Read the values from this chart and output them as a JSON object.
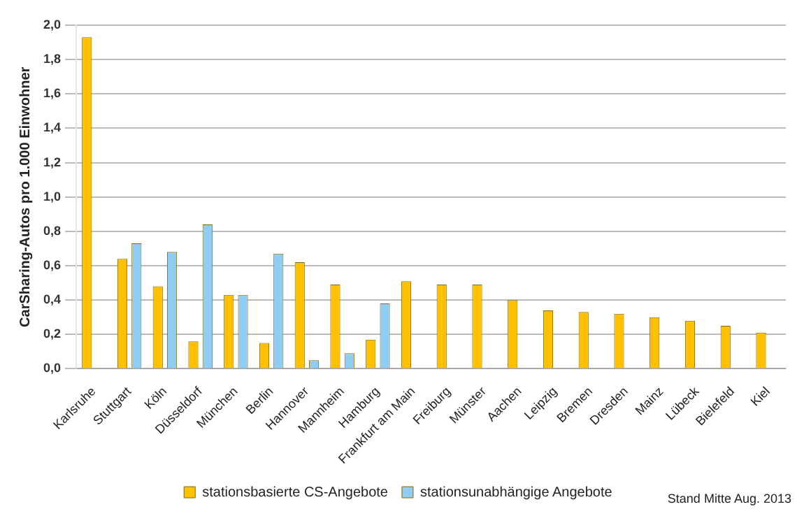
{
  "chart_data": {
    "type": "bar",
    "ylabel": "CarSharing-Autos pro 1.000 Einwohner",
    "categories": [
      "Karlsruhe",
      "Stuttgart",
      "Köln",
      "Düsseldorf",
      "München",
      "Berlin",
      "Hannover",
      "Mannheim",
      "Hamburg",
      "Frankfurt am Main",
      "Freiburg",
      "Münster",
      "Aachen",
      "Leipzig",
      "Bremen",
      "Dresden",
      "Mainz",
      "Lübeck",
      "Bielefeld",
      "Kiel"
    ],
    "series": [
      {
        "name": "stationsbasierte CS-Angebote",
        "color": "#ffc000",
        "values": [
          1.93,
          0.64,
          0.48,
          0.16,
          0.43,
          0.15,
          0.62,
          0.49,
          0.17,
          0.51,
          0.49,
          0.49,
          0.4,
          0.34,
          0.33,
          0.32,
          0.3,
          0.28,
          0.25,
          0.21
        ]
      },
      {
        "name": "stationsunabhängige Angebote",
        "color": "#8fcdf5",
        "values": [
          0,
          0.73,
          0.68,
          0.84,
          0.43,
          0.67,
          0.05,
          0.09,
          0.38,
          0,
          0,
          0,
          0,
          0,
          0,
          0,
          0,
          0,
          0,
          0
        ]
      }
    ],
    "ylim": [
      0,
      2
    ],
    "yticks": [
      {
        "value": 0,
        "label": "0,0"
      },
      {
        "value": 0.2,
        "label": "0,2"
      },
      {
        "value": 0.4,
        "label": "0,4"
      },
      {
        "value": 0.6,
        "label": "0,6"
      },
      {
        "value": 0.8,
        "label": "0,8"
      },
      {
        "value": 1,
        "label": "1,0"
      },
      {
        "value": 1.2,
        "label": "1,2"
      },
      {
        "value": 1.4,
        "label": "1,4"
      },
      {
        "value": 1.6,
        "label": "1,6"
      },
      {
        "value": 1.8,
        "label": "1,8"
      },
      {
        "value": 2,
        "label": "2,0"
      }
    ],
    "grid": "y",
    "legend": "bottom",
    "annotations": [
      "Stand Mitte Aug. 2013"
    ]
  }
}
